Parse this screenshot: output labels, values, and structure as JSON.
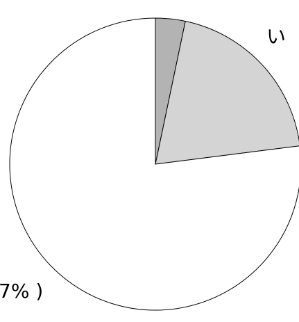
{
  "chart_data": {
    "type": "pie",
    "title": "",
    "start_angle_deg": 0,
    "direction": "clockwise",
    "slices": [
      {
        "value": 3.3,
        "color": "#b3b3b3",
        "label": ""
      },
      {
        "value": 19.7,
        "color": "#d4d4d4",
        "label": "い"
      },
      {
        "value": 77.0,
        "color": "#ffffff",
        "label": "7% )"
      }
    ],
    "legend": "none"
  }
}
